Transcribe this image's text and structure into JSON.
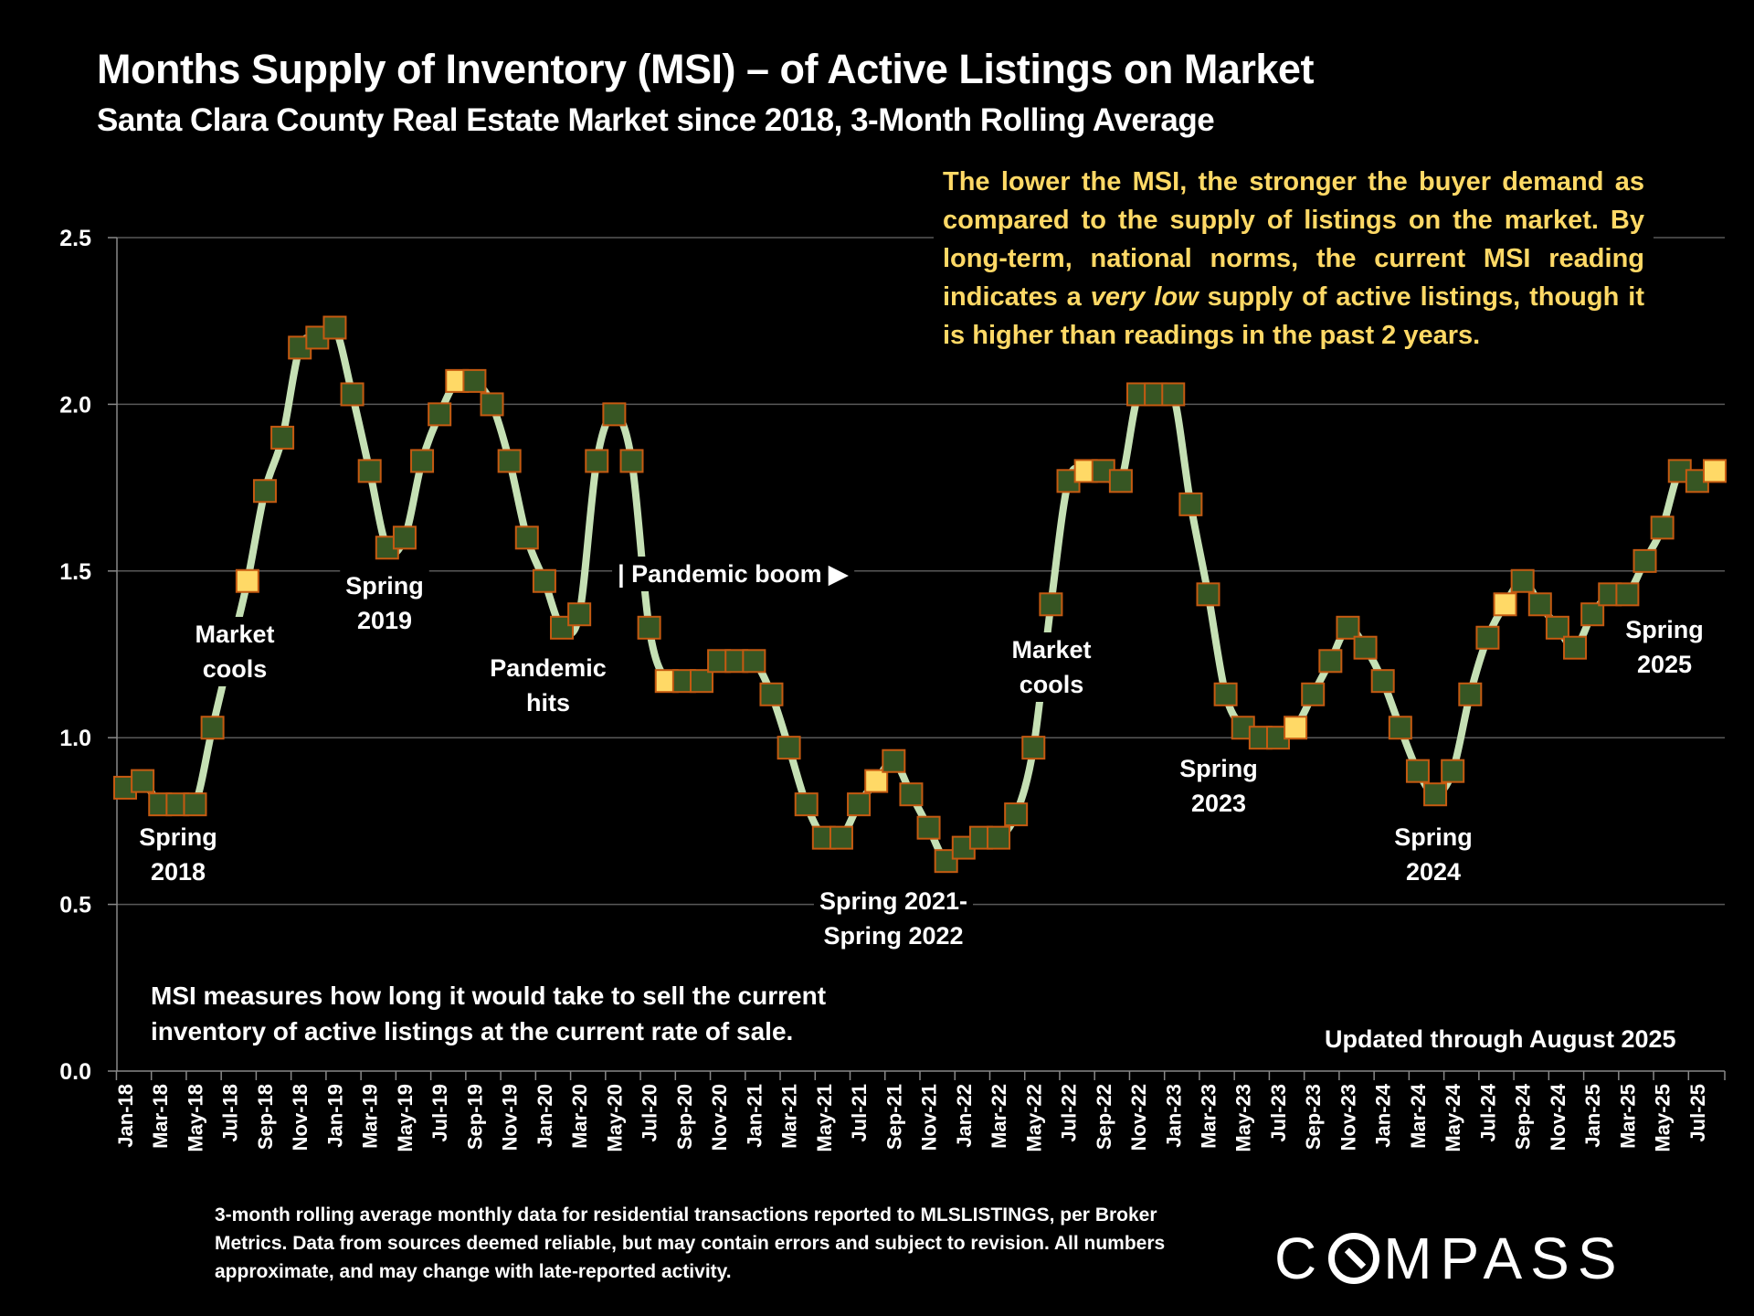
{
  "header": {
    "title": "Months Supply of Inventory (MSI) – of Active Listings on Market",
    "subtitle": "Santa Clara County Real Estate Market since 2018, 3-Month Rolling Average"
  },
  "notes": {
    "yellow_box_parts": [
      "The lower the MSI, the stronger the buyer demand as compared to the supply of listings on the market. By long-term, national norms, the current MSI reading indicates a ",
      "very low",
      " supply of active listings, though it is higher than readings in the past 2 years."
    ],
    "msi_definition": "MSI measures how long it would take to sell the current inventory of active listings at the current rate of sale.",
    "updated": "Updated through August 2025",
    "footnote": "3-month rolling average monthly data for residential transactions reported to MLSLISTINGS, per Broker Metrics. Data from sources deemed reliable, but may contain errors and subject to revision. All numbers approximate, and may change with late-reported activity."
  },
  "logo": {
    "before": "C",
    "after": "MPASS"
  },
  "colors": {
    "background": "#000000",
    "line": "#C5E0B4",
    "marker_fill": "#375623",
    "marker_highlight": "#FFD966",
    "marker_border": "#C55A11",
    "grid": "#595959",
    "note_text": "#FFD966"
  },
  "chart_data": {
    "type": "line",
    "title": "Months Supply of Inventory (MSI) – of Active Listings on Market",
    "subtitle": "Santa Clara County Real Estate Market since 2018, 3-Month Rolling Average",
    "xlabel": "",
    "ylabel": "",
    "ylim": [
      0,
      2.5
    ],
    "yticks": [
      "0.0",
      "0.5",
      "1.0",
      "1.5",
      "2.0",
      "2.5"
    ],
    "grid": true,
    "x": [
      "Jan-18",
      "Feb-18",
      "Mar-18",
      "Apr-18",
      "May-18",
      "Jun-18",
      "Jul-18",
      "Aug-18",
      "Sep-18",
      "Oct-18",
      "Nov-18",
      "Dec-18",
      "Jan-19",
      "Feb-19",
      "Mar-19",
      "Apr-19",
      "May-19",
      "Jun-19",
      "Jul-19",
      "Aug-19",
      "Sep-19",
      "Oct-19",
      "Nov-19",
      "Dec-19",
      "Jan-20",
      "Feb-20",
      "Mar-20",
      "Apr-20",
      "May-20",
      "Jun-20",
      "Jul-20",
      "Aug-20",
      "Sep-20",
      "Oct-20",
      "Nov-20",
      "Dec-20",
      "Jan-21",
      "Feb-21",
      "Mar-21",
      "Apr-21",
      "May-21",
      "Jun-21",
      "Jul-21",
      "Aug-21",
      "Sep-21",
      "Oct-21",
      "Nov-21",
      "Dec-21",
      "Jan-22",
      "Feb-22",
      "Mar-22",
      "Apr-22",
      "May-22",
      "Jun-22",
      "Jul-22",
      "Aug-22",
      "Sep-22",
      "Oct-22",
      "Nov-22",
      "Dec-22",
      "Jan-23",
      "Feb-23",
      "Mar-23",
      "Apr-23",
      "May-23",
      "Jun-23",
      "Jul-23",
      "Aug-23",
      "Sep-23",
      "Oct-23",
      "Nov-23",
      "Dec-23",
      "Jan-24",
      "Feb-24",
      "Mar-24",
      "Apr-24",
      "May-24",
      "Jun-24",
      "Jul-24",
      "Aug-24",
      "Sep-24",
      "Oct-24",
      "Nov-24",
      "Dec-24",
      "Jan-25",
      "Feb-25",
      "Mar-25",
      "Apr-25",
      "May-25",
      "Jun-25",
      "Jul-25",
      "Aug-25"
    ],
    "xtick_labels_every": 2,
    "series": [
      {
        "name": "MSI (3-month rolling average)",
        "values": [
          0.85,
          0.87,
          0.8,
          0.8,
          0.8,
          1.03,
          1.25,
          1.47,
          1.74,
          1.9,
          2.17,
          2.2,
          2.23,
          2.03,
          1.8,
          1.57,
          1.6,
          1.83,
          1.97,
          2.07,
          2.07,
          2.0,
          1.83,
          1.6,
          1.47,
          1.33,
          1.37,
          1.83,
          1.97,
          1.83,
          1.33,
          1.17,
          1.17,
          1.17,
          1.23,
          1.23,
          1.23,
          1.13,
          0.97,
          0.8,
          0.7,
          0.7,
          0.8,
          0.87,
          0.93,
          0.83,
          0.73,
          0.63,
          0.67,
          0.7,
          0.7,
          0.77,
          0.97,
          1.4,
          1.77,
          1.8,
          1.8,
          1.77,
          2.03,
          2.03,
          2.03,
          1.7,
          1.43,
          1.13,
          1.03,
          1.0,
          1.0,
          1.03,
          1.13,
          1.23,
          1.33,
          1.27,
          1.17,
          1.03,
          0.9,
          0.83,
          0.9,
          1.13,
          1.3,
          1.4,
          1.47,
          1.4,
          1.33,
          1.27,
          1.37,
          1.43,
          1.43,
          1.53,
          1.63,
          1.8,
          1.77,
          1.8
        ],
        "highlighted_points": [
          "Aug-18",
          "Aug-19",
          "Aug-20",
          "Aug-21",
          "Aug-22",
          "Aug-23",
          "Aug-24",
          "Aug-25"
        ],
        "hidden_points": [
          "Jul-18"
        ]
      }
    ],
    "annotations": [
      {
        "text": [
          "Spring",
          "2018"
        ],
        "near": "Apr-18"
      },
      {
        "text": [
          "Market",
          "cools"
        ],
        "near": "Jul-18"
      },
      {
        "text": [
          "Spring",
          "2019"
        ],
        "near": "Apr-19"
      },
      {
        "text": [
          "Pandemic",
          "hits"
        ],
        "near": "Mar-20"
      },
      {
        "text": [
          "| Pandemic boom ▶"
        ],
        "near": "Jul-20"
      },
      {
        "text": [
          "Spring 2021-",
          "Spring 2022"
        ],
        "near": "Sep-21"
      },
      {
        "text": [
          "Market",
          "cools"
        ],
        "near": "Jun-22"
      },
      {
        "text": [
          "Spring",
          "2023"
        ],
        "near": "Apr-23"
      },
      {
        "text": [
          "Spring",
          "2024"
        ],
        "near": "Apr-24"
      },
      {
        "text": [
          "Spring",
          "2025"
        ],
        "near": "Mar-25"
      }
    ]
  }
}
